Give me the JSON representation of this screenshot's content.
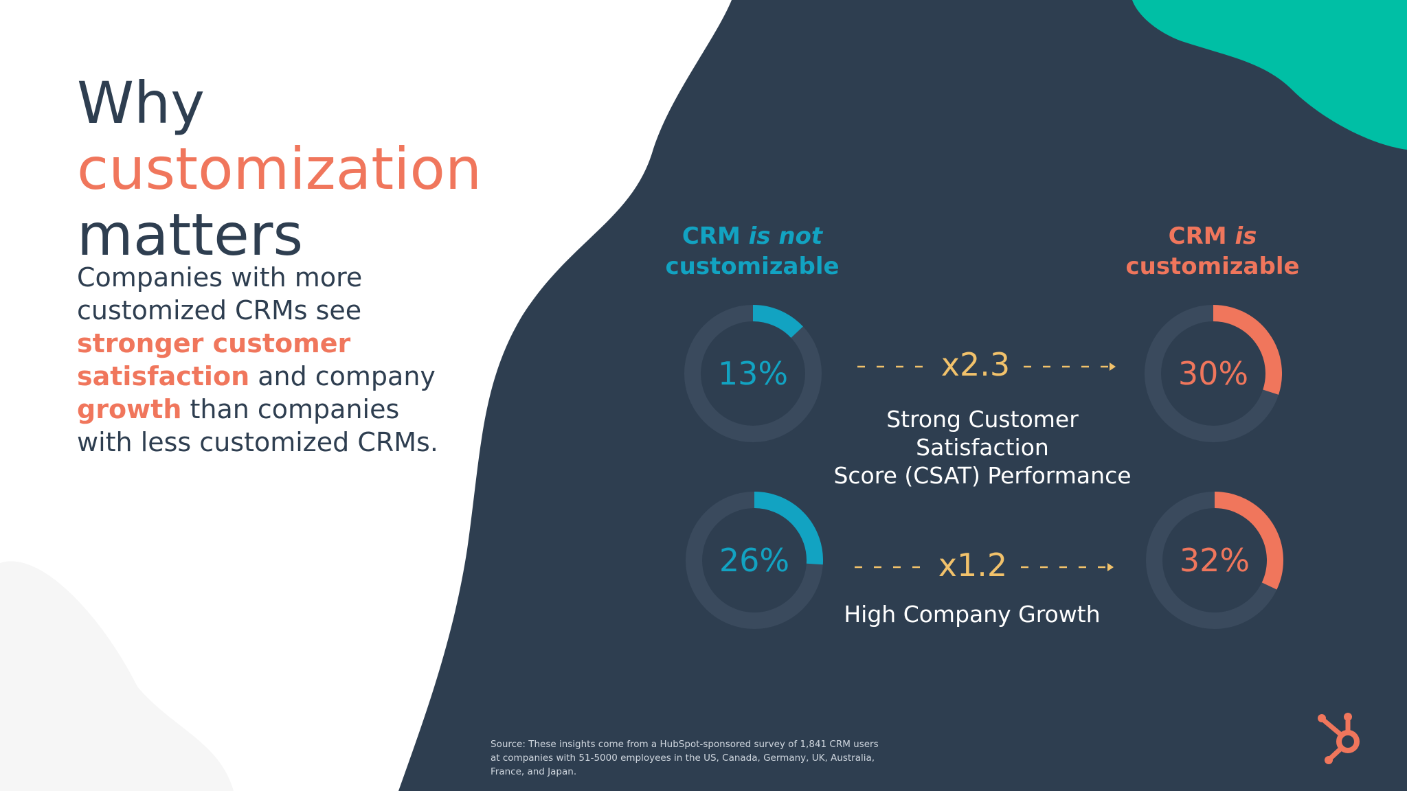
{
  "colors": {
    "navy": "#2e3e50",
    "teal_accent": "#00bfa5",
    "orange": "#f0765c",
    "blue": "#12a3c2",
    "gold": "#f2c26b",
    "ring_track": "#3a4a5d",
    "white": "#ffffff"
  },
  "logo": {
    "icon": "hubspot-sprocket-icon"
  },
  "title": {
    "line1": "Why",
    "line2": "customization",
    "line3": "matters"
  },
  "body": {
    "line1": "Companies with more",
    "line2": "customized CRMs see",
    "line3_hl": "stronger customer",
    "line4_hl": "satisfaction",
    "line4_rest": " and company",
    "line5_hl": "growth",
    "line5_rest": " than companies",
    "line6": "with less customized CRMs."
  },
  "chart_data": {
    "type": "donut",
    "columns": [
      {
        "line1_plain": "CRM ",
        "line1_italic": "is not",
        "line2": "customizable"
      },
      {
        "line1_plain": "CRM ",
        "line1_italic": "is",
        "line2": "customizable"
      }
    ],
    "metrics": [
      {
        "label_lines": [
          "Strong Customer",
          "Satisfaction",
          "Score (CSAT) Performance"
        ],
        "not_customizable": {
          "value": 13,
          "label": "13%"
        },
        "customizable": {
          "value": 30,
          "label": "30%"
        },
        "multiplier": "x2.3"
      },
      {
        "label_lines": [
          "High Company Growth"
        ],
        "not_customizable": {
          "value": 26,
          "label": "26%"
        },
        "customizable": {
          "value": 32,
          "label": "32%"
        },
        "multiplier": "x1.2"
      }
    ]
  },
  "source": {
    "line1": "Source: These insights come from a HubSpot-sponsored survey of 1,841 CRM users",
    "line2": "at companies with 51-5000 employees in the US, Canada, Germany, UK, Australia,",
    "line3": "France, and Japan."
  }
}
